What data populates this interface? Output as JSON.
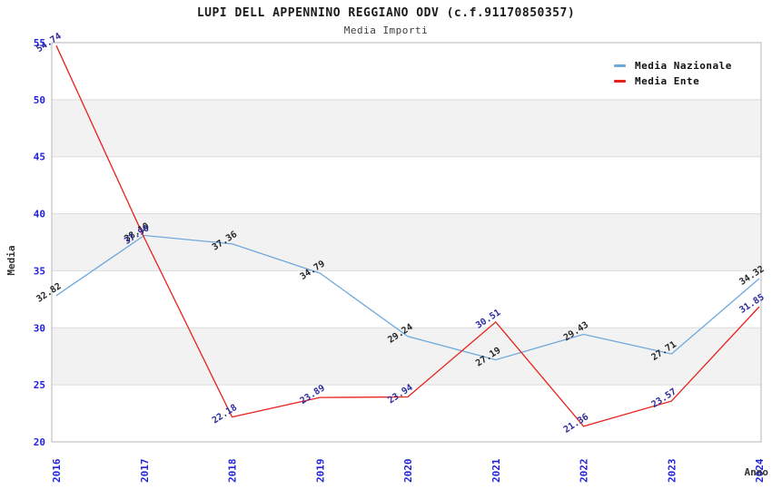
{
  "header": {
    "title": "LUPI DELL APPENNINO REGGIANO ODV (c.f.91170850357)",
    "subtitle": "Media Importi"
  },
  "chart_data": {
    "type": "line",
    "title": "LUPI DELL APPENNINO REGGIANO ODV (c.f.91170850357)",
    "subtitle": "Media Importi",
    "xlabel": "Anno",
    "ylabel": "Media",
    "x": [
      "2016",
      "2017",
      "2018",
      "2019",
      "2020",
      "2021",
      "2022",
      "2023",
      "2024"
    ],
    "series": [
      {
        "name": "Media Nazionale",
        "color": "#6fa8dc",
        "label_color": "#262626",
        "values": [
          32.82,
          38.1,
          37.36,
          34.79,
          29.24,
          27.19,
          29.43,
          27.71,
          34.32
        ]
      },
      {
        "name": "Media Ente",
        "color": "#e8201a",
        "label_color": "#2b2b9e",
        "values": [
          54.74,
          37.9,
          22.18,
          23.89,
          23.94,
          30.51,
          21.36,
          23.57,
          31.85
        ]
      }
    ],
    "ylim": [
      20,
      55
    ],
    "y_ticks": [
      20,
      25,
      30,
      35,
      40,
      45,
      50,
      55
    ],
    "grid": true,
    "band_ranges": [
      [
        25,
        30
      ],
      [
        35,
        40
      ],
      [
        45,
        50
      ]
    ],
    "band_color": "#f2f2f2",
    "grid_color": "#dcdcdc",
    "frame_color": "#b5b5b5",
    "tick_label_color": "#2222dd",
    "axis_title_color": "#333333",
    "legend_position": "top-right"
  }
}
